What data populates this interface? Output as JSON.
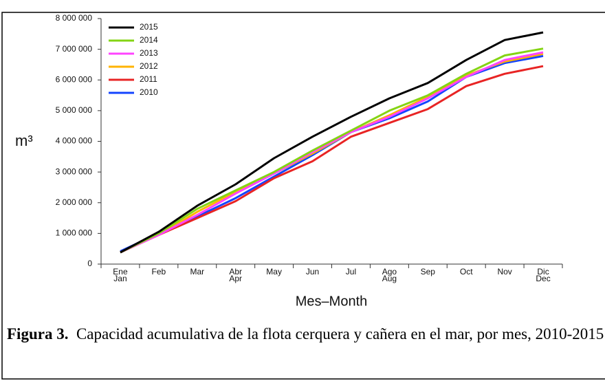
{
  "chart_data": {
    "type": "line",
    "y_label": "m³",
    "x_label": "Mes–Month",
    "categories": [
      [
        "Ene",
        "Jan"
      ],
      [
        "Feb"
      ],
      [
        "Mar"
      ],
      [
        "Abr",
        "Apr"
      ],
      [
        "May"
      ],
      [
        "Jun"
      ],
      [
        "Jul"
      ],
      [
        "Ago",
        "Aug"
      ],
      [
        "Sep"
      ],
      [
        "Oct"
      ],
      [
        "Nov"
      ],
      [
        "Dic",
        "Dec"
      ]
    ],
    "ylim": [
      0,
      8000000
    ],
    "yticks": [
      0,
      {
        "value": 1000000,
        "label": "1 000 000"
      },
      {
        "value": 2000000,
        "label": "2 000 000"
      },
      {
        "value": 3000000,
        "label": "3 000 000"
      },
      {
        "value": 4000000,
        "label": "4 000 000"
      },
      {
        "value": 5000000,
        "label": "5 000 000"
      },
      {
        "value": 6000000,
        "label": "6 000 000"
      },
      {
        "value": 7000000,
        "label": "7 000 000"
      },
      {
        "value": 8000000,
        "label": "8 000 000"
      }
    ],
    "legend": "upper left",
    "series": [
      {
        "name": "2015",
        "color": "#000000",
        "values": [
          380000,
          1050000,
          1900000,
          2600000,
          3450000,
          4150000,
          4800000,
          5400000,
          5900000,
          6650000,
          7300000,
          7550000
        ]
      },
      {
        "name": "2014",
        "color": "#84d414",
        "values": [
          380000,
          1000000,
          1800000,
          2400000,
          3000000,
          3700000,
          4350000,
          5000000,
          5500000,
          6200000,
          6800000,
          7020000
        ]
      },
      {
        "name": "2013",
        "color": "#ff44ff",
        "values": [
          380000,
          950000,
          1600000,
          2300000,
          2950000,
          3650000,
          4300000,
          4800000,
          5400000,
          6100000,
          6650000,
          6900000
        ]
      },
      {
        "name": "2012",
        "color": "#ffb300",
        "values": [
          380000,
          950000,
          1700000,
          2350000,
          2950000,
          3600000,
          4300000,
          4850000,
          5450000,
          6150000,
          6600000,
          6850000
        ]
      },
      {
        "name": "2011",
        "color": "#e82424",
        "values": [
          380000,
          950000,
          1500000,
          2050000,
          2800000,
          3350000,
          4150000,
          4600000,
          5050000,
          5800000,
          6200000,
          6450000
        ]
      },
      {
        "name": "2010",
        "color": "#1444ff",
        "values": [
          420000,
          1000000,
          1550000,
          2150000,
          2850000,
          3550000,
          4300000,
          4750000,
          5300000,
          6100000,
          6550000,
          6780000
        ]
      }
    ]
  },
  "caption": {
    "label": "Figura 3.",
    "text": "Capacidad acumulativa de la flota cerquera y cañera en el mar, por mes, 2010-2015"
  }
}
